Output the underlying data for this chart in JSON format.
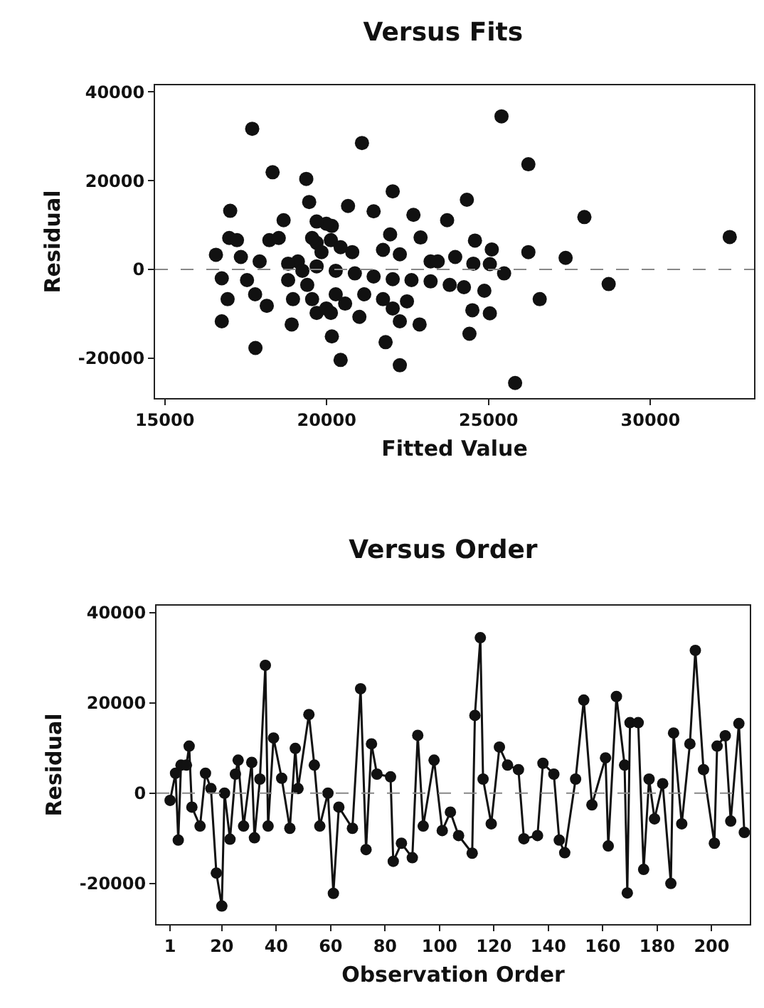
{
  "chart_data": [
    {
      "type": "scatter",
      "title": "Versus Fits",
      "xlabel": "Fitted Value",
      "ylabel": "Residual",
      "marker": "circle",
      "grid": false,
      "xlim": [
        14700,
        33200
      ],
      "xticks": [
        15000,
        20000,
        25000,
        30000
      ],
      "ylim": [
        -29000,
        41500
      ],
      "yticks": [
        -20000,
        0,
        20000,
        40000
      ],
      "ref_lines": [
        {
          "axis": "y",
          "value": 0,
          "line_style": "dashed",
          "color": "#888888"
        }
      ],
      "x": [
        17700,
        25400,
        21090,
        18330,
        19370,
        22040,
        26230,
        24330,
        27960,
        32450,
        17020,
        20660,
        21450,
        22680,
        23720,
        19460,
        18670,
        20160,
        21960,
        22900,
        24580,
        25100,
        26230,
        27380,
        23970,
        28710,
        26580,
        24870,
        25480,
        25040,
        24530,
        24500,
        25040,
        24410,
        25820,
        22260,
        20430,
        17800,
        20160,
        21820,
        16760,
        16940,
        16760,
        16580,
        16990,
        17230,
        17540,
        17790,
        18150,
        18920,
        22870,
        22260,
        21010,
        18230,
        18520,
        19110,
        19690,
        20130,
        20430,
        20790,
        21740,
        22260,
        23210,
        23430,
        17350,
        17930,
        18810,
        19690,
        20280,
        20870,
        21450,
        22040,
        22620,
        23210,
        23800,
        24240,
        19400,
        19550,
        19690,
        19990,
        20280,
        20570,
        20130,
        21160,
        21740,
        22040,
        22480,
        18960,
        18810,
        19250,
        19840,
        19550,
        19990,
        19690
      ],
      "series": [
        {
          "color": "#111111",
          "values": [
            31700,
            34500,
            28500,
            21900,
            20400,
            17600,
            23700,
            15700,
            11800,
            7300,
            13200,
            14300,
            13100,
            12300,
            11100,
            15200,
            11100,
            9800,
            7900,
            7200,
            6500,
            4500,
            3900,
            2600,
            2800,
            -3300,
            -6700,
            -4800,
            -900,
            1200,
            1300,
            -9200,
            -9900,
            -14500,
            -25600,
            -21600,
            -20400,
            -17700,
            -15100,
            -16400,
            -11700,
            -6700,
            -2000,
            3300,
            7100,
            6600,
            -2400,
            -5600,
            -8200,
            -12400,
            -12400,
            -11700,
            -10700,
            6600,
            7100,
            1800,
            6000,
            6600,
            5000,
            3900,
            4400,
            3400,
            1800,
            1800,
            2800,
            1800,
            1300,
            700,
            -300,
            -900,
            -1600,
            -2200,
            -2400,
            -2700,
            -3500,
            -4000,
            -3500,
            -6700,
            -9800,
            -8800,
            -5600,
            -7700,
            -9800,
            -5600,
            -6700,
            -8800,
            -7200,
            -6700,
            -2400,
            -300,
            3900,
            7100,
            10300,
            10800
          ]
        }
      ]
    },
    {
      "type": "line",
      "title": "Versus Order",
      "xlabel": "Observation Order",
      "ylabel": "Residual",
      "marker": "circle",
      "line_style": "solid",
      "grid": false,
      "xlim": [
        -4,
        214
      ],
      "xticks": [
        1,
        20,
        40,
        60,
        80,
        100,
        120,
        140,
        160,
        180,
        200
      ],
      "ylim": [
        -29000,
        41500
      ],
      "yticks": [
        -20000,
        0,
        20000,
        40000
      ],
      "ref_lines": [
        {
          "axis": "y",
          "value": 0,
          "line_style": "dashed",
          "color": "#888888"
        }
      ],
      "x": [
        1,
        3,
        4,
        5,
        7,
        8,
        9,
        12,
        14,
        16,
        18,
        20,
        21,
        23,
        25,
        26,
        28,
        31,
        32,
        34,
        36,
        37,
        39,
        42,
        45,
        47,
        48,
        52,
        54,
        56,
        59,
        61,
        63,
        68,
        71,
        73,
        75,
        77,
        82,
        83,
        86,
        90,
        92,
        94,
        98,
        101,
        104,
        107,
        112,
        113,
        115,
        116,
        119,
        122,
        125,
        129,
        131,
        136,
        138,
        142,
        144,
        146,
        150,
        153,
        156,
        161,
        162,
        165,
        168,
        169,
        170,
        173,
        175,
        177,
        179,
        182,
        185,
        186,
        189,
        192,
        194,
        197,
        201,
        202,
        205,
        207,
        210,
        212
      ],
      "series": [
        {
          "color": "#111111",
          "values": [
            -1600,
            4400,
            -10400,
            6200,
            6200,
            10400,
            -3100,
            -7300,
            4400,
            1000,
            -17700,
            -25000,
            0,
            -10200,
            4200,
            7300,
            -7300,
            6800,
            -9900,
            3100,
            28300,
            -7300,
            12200,
            3300,
            -7800,
            9900,
            1000,
            17400,
            6200,
            -7300,
            0,
            -22200,
            -3100,
            -7800,
            23100,
            -12500,
            10900,
            4200,
            3600,
            -15100,
            -11100,
            -14300,
            12800,
            -7300,
            7300,
            -8300,
            -4200,
            -9400,
            -13300,
            17200,
            34400,
            3100,
            -6800,
            10200,
            6200,
            5200,
            -10100,
            -9400,
            6600,
            4200,
            -10400,
            -13200,
            3100,
            20600,
            -2600,
            7800,
            -11700,
            21400,
            6200,
            -22100,
            15600,
            15600,
            -16900,
            3100,
            -5700,
            2100,
            -20000,
            13300,
            -6800,
            10900,
            31600,
            5200,
            -11100,
            10400,
            12700,
            -6200,
            15400,
            -8700
          ]
        }
      ]
    }
  ]
}
